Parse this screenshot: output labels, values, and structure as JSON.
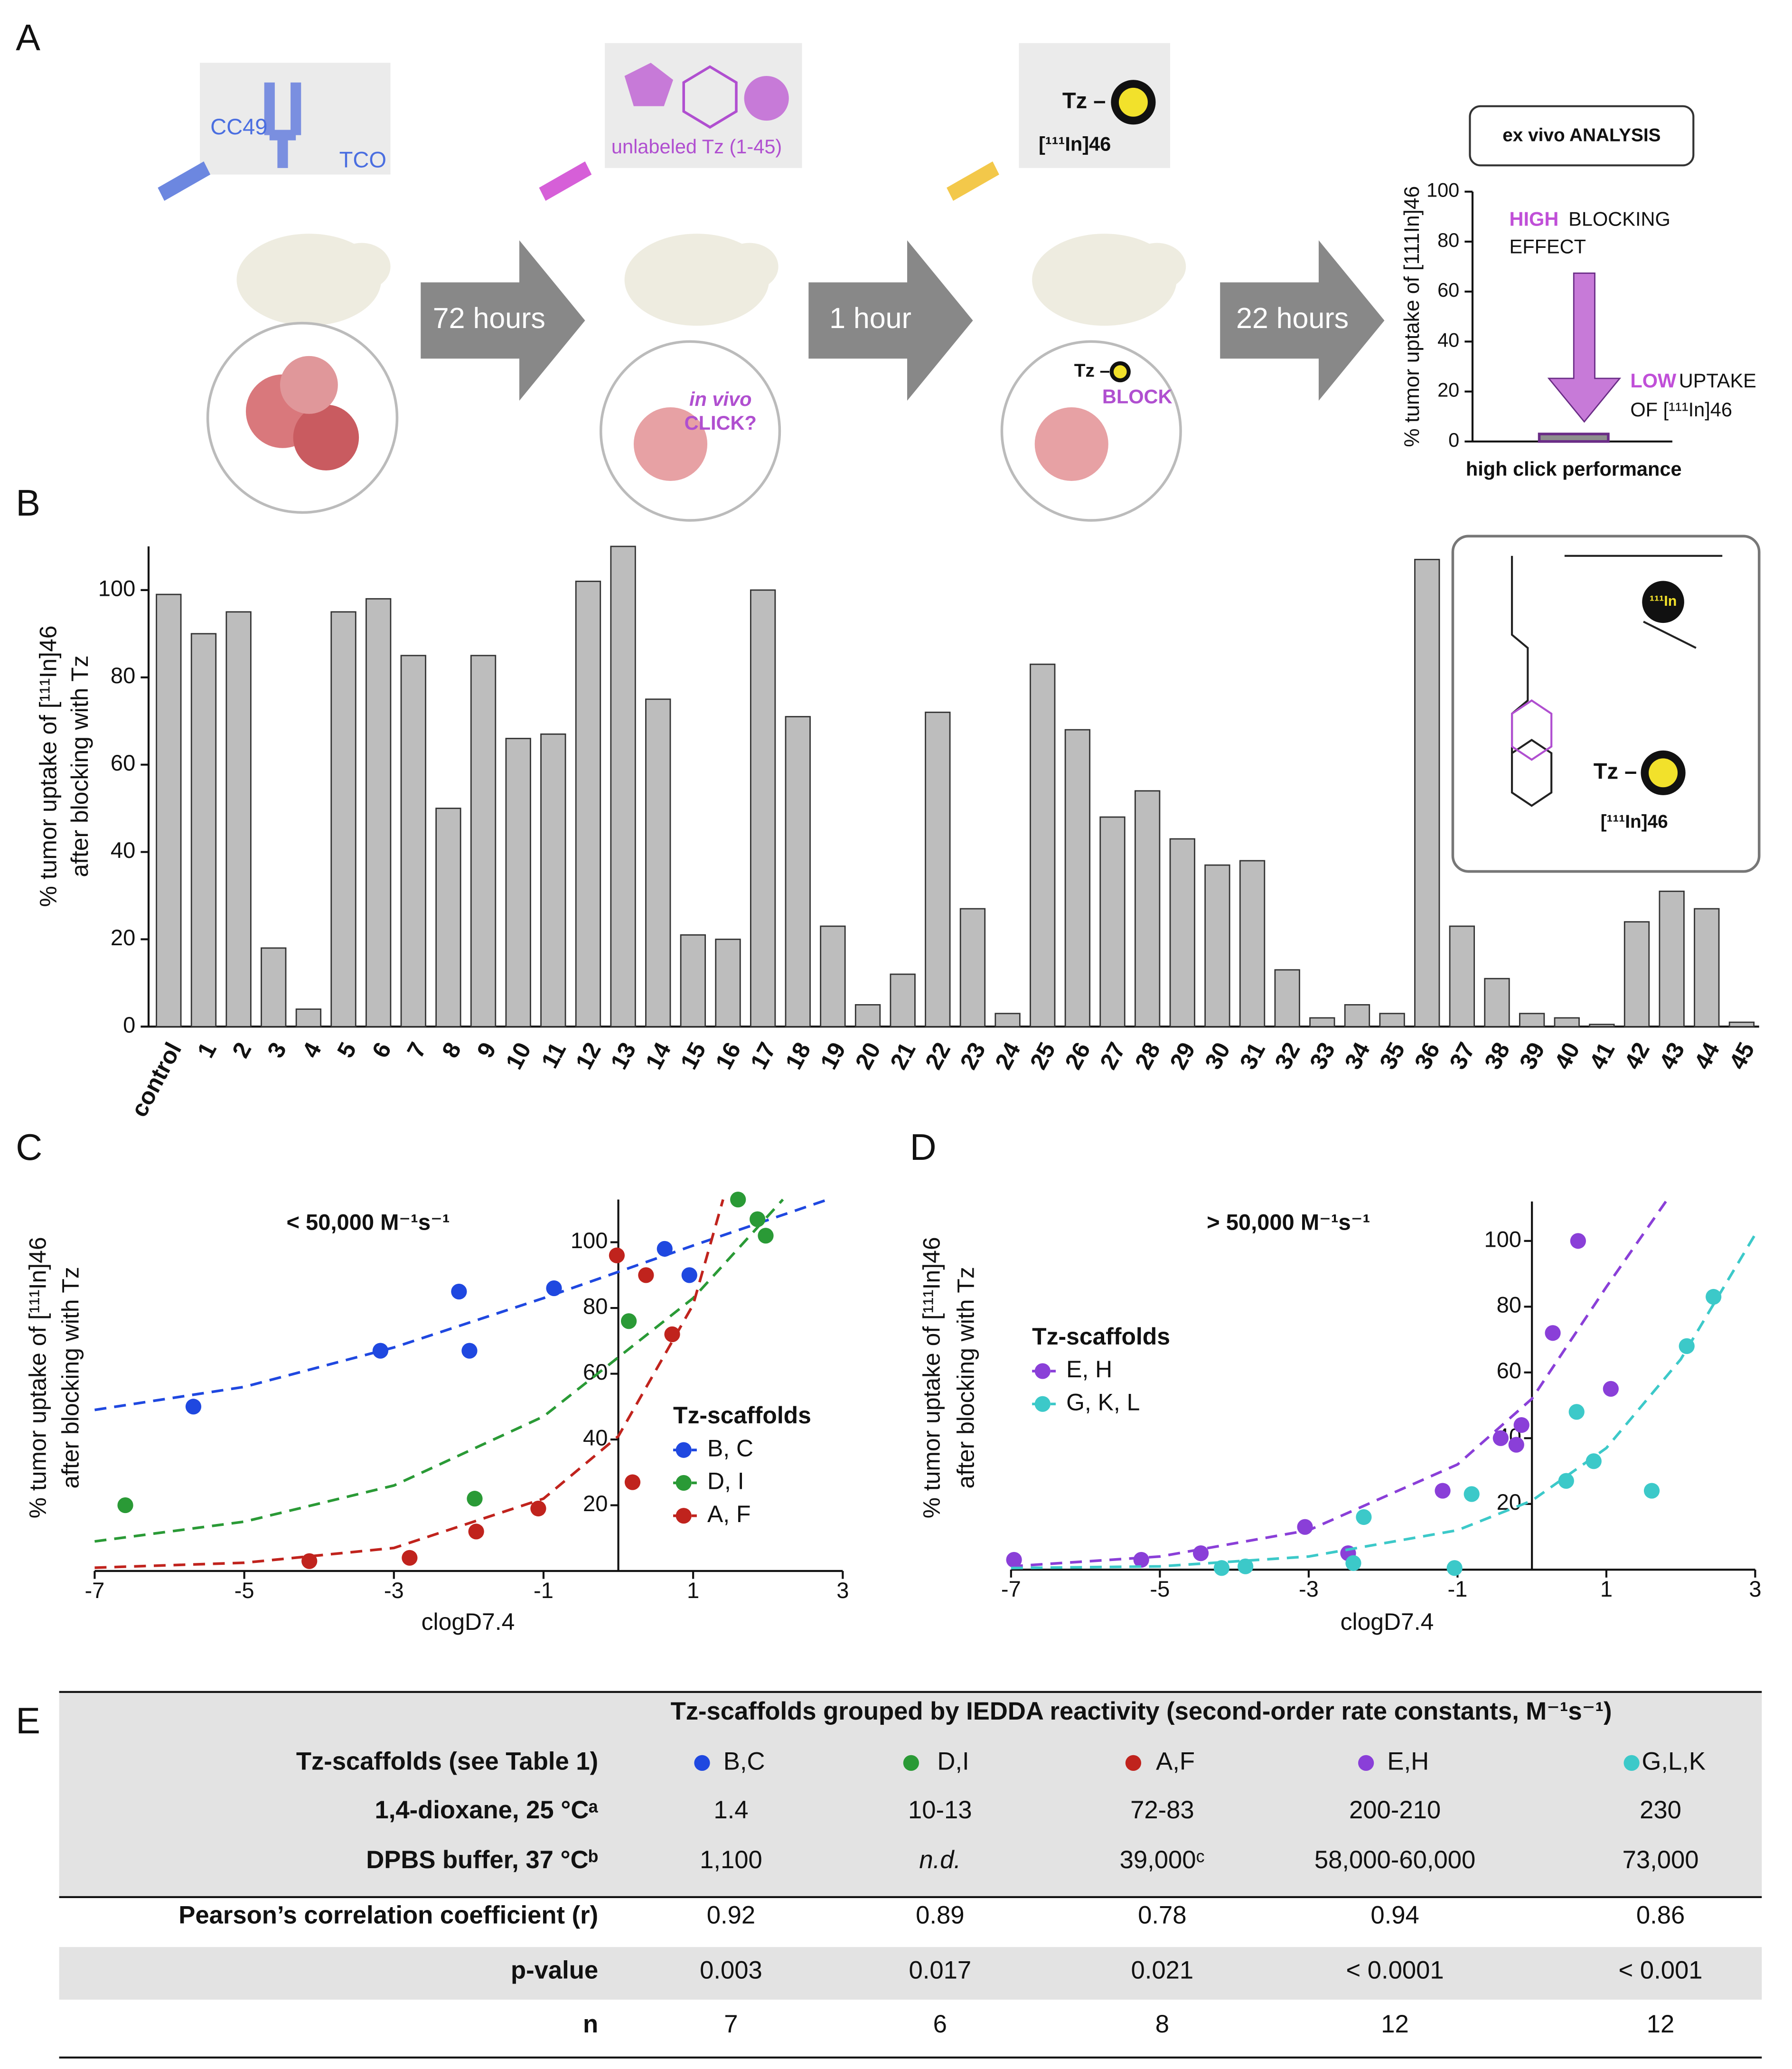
{
  "panel_labels": [
    "A",
    "B",
    "C",
    "D",
    "E"
  ],
  "schematic": {
    "antibody": "CC49",
    "tco": "TCO",
    "unlabeled_tz": "unlabeled Tz (1-45)",
    "tz_label": "Tz –",
    "probe": "[¹¹¹In]46",
    "steps": [
      "72 hours",
      "1 hour",
      "22 hours"
    ],
    "in_vivo": "in vivo",
    "click": "CLICK?",
    "tz_small": "Tz –",
    "block": "BLOCK",
    "analysis": "ex vivo ANALYSIS"
  },
  "structure": {
    "tz_label": "Tz –",
    "probe": "[¹¹¹In]46",
    "metal": "¹¹¹In"
  },
  "chart_data": [
    {
      "type": "bar",
      "categories": [
        "high click performance"
      ],
      "values": [
        3
      ],
      "color": "#8e8e8e",
      "edge_color": "#6a2c86",
      "ylim": [
        0,
        100
      ],
      "yticks": [
        0,
        20,
        40,
        60,
        80,
        100
      ],
      "ylabel": [
        "% tumor uptake of [111In]46"
      ],
      "annotations": [
        "HIGH",
        "BLOCKING",
        "EFFECT",
        "LOW",
        "UPTAKE",
        "OF [¹¹¹In]46"
      ],
      "annotation_color": "#c04fd8"
    },
    {
      "type": "bar",
      "categories": [
        "control",
        "1",
        "2",
        "3",
        "4",
        "5",
        "6",
        "7",
        "8",
        "9",
        "10",
        "11",
        "12",
        "13",
        "14",
        "15",
        "16",
        "17",
        "18",
        "19",
        "20",
        "21",
        "22",
        "23",
        "24",
        "25",
        "26",
        "27",
        "28",
        "29",
        "30",
        "31",
        "32",
        "33",
        "34",
        "35",
        "36",
        "37",
        "38",
        "39",
        "40",
        "41",
        "42",
        "43",
        "44",
        "45"
      ],
      "values": [
        99,
        90,
        95,
        18,
        4,
        95,
        98,
        85,
        50,
        85,
        66,
        67,
        102,
        110,
        75,
        21,
        20,
        100,
        71,
        23,
        5,
        12,
        72,
        27,
        3,
        83,
        68,
        48,
        54,
        43,
        37,
        38,
        13,
        2,
        5,
        3,
        107,
        23,
        11,
        3,
        2,
        0.5,
        24,
        31,
        27,
        1
      ],
      "color": "#bdbdbd",
      "ylim": [
        0,
        110
      ],
      "yticks": [
        0,
        20,
        40,
        60,
        80,
        100
      ],
      "ylabel": [
        "% tumor uptake of [¹¹¹In]46",
        "after blocking with Tz"
      ]
    },
    {
      "type": "scatter",
      "annotation": "< 50,000 M⁻¹s⁻¹",
      "xlabel": "clogD7.4",
      "ylabel": [
        "% tumor uptake of [¹¹¹In]46",
        "after blocking with Tz"
      ],
      "xlim": [
        -7,
        3
      ],
      "ylim": [
        0,
        113
      ],
      "xticks": [
        -7,
        -5,
        -3,
        -1,
        1,
        3
      ],
      "yticks": [
        20,
        40,
        60,
        80,
        100
      ],
      "legend_title": "Tz-scaffolds",
      "series": [
        {
          "name": "B, C",
          "color": "#1f48e0",
          "x": [
            -5.68,
            -2.13,
            -3.18,
            -1.99,
            -0.86,
            0.62,
            0.95
          ],
          "values": [
            50,
            85,
            67,
            67,
            86,
            98,
            90
          ],
          "fit_x": [
            -7,
            -5,
            -3,
            -1,
            1,
            2.8
          ],
          "fit_values": [
            49,
            56,
            68,
            83,
            99,
            113
          ]
        },
        {
          "name": "D, I",
          "color": "#2a9a36",
          "x": [
            -6.59,
            -1.92,
            0.14,
            1.6,
            1.86,
            1.97
          ],
          "values": [
            20,
            22,
            76,
            113,
            107,
            102
          ],
          "fit_x": [
            -7,
            -5,
            -3,
            -1,
            1,
            2.2
          ],
          "fit_values": [
            9,
            15,
            26,
            47,
            83,
            113
          ]
        },
        {
          "name": "A, F",
          "color": "#c0231d",
          "x": [
            -4.13,
            -2.79,
            -1.9,
            -1.07,
            -0.02,
            0.37,
            0.72,
            0.19
          ],
          "values": [
            3,
            4,
            12,
            19,
            96,
            90,
            72,
            27
          ],
          "fit_x": [
            -7,
            -5,
            -3,
            -1,
            0,
            1,
            1.4
          ],
          "fit_values": [
            1,
            2.5,
            7,
            22,
            41,
            81,
            113
          ]
        }
      ]
    },
    {
      "type": "scatter",
      "annotation": "> 50,000 M⁻¹s⁻¹",
      "xlabel": "clogD7.4",
      "ylabel": [
        "% tumor uptake of [¹¹¹In]46",
        "after blocking with Tz"
      ],
      "xlim": [
        -7,
        3
      ],
      "ylim": [
        0,
        112
      ],
      "xticks": [
        -7,
        -5,
        -3,
        -1,
        1,
        3
      ],
      "yticks": [
        20,
        40,
        60,
        80,
        100
      ],
      "legend_title": "Tz-scaffolds",
      "series": [
        {
          "name": "E, H",
          "color": "#8a3fd8",
          "x": [
            -6.96,
            -5.25,
            -4.45,
            -3.05,
            -2.47,
            -1.2,
            -0.42,
            -0.21,
            -0.14,
            0.28,
            0.62,
            1.06
          ],
          "values": [
            3,
            3,
            5,
            13,
            5,
            24,
            40,
            38,
            44,
            72,
            100,
            55
          ],
          "fit_x": [
            -7,
            -5,
            -3,
            -1,
            0,
            1,
            1.8
          ],
          "fit_values": [
            1,
            4,
            12,
            32,
            52,
            86,
            112
          ]
        },
        {
          "name": "G, K, L",
          "color": "#3cc9c9",
          "x": [
            -4.17,
            -3.85,
            -2.4,
            -2.26,
            -1.04,
            -0.81,
            0.46,
            0.6,
            0.83,
            1.61,
            2.08,
            2.44
          ],
          "values": [
            0.5,
            1,
            2,
            16,
            0.5,
            23,
            27,
            48,
            33,
            24,
            68,
            83
          ],
          "fit_x": [
            -7,
            -5,
            -3,
            -1,
            0,
            1,
            2,
            3
          ],
          "fit_values": [
            0.5,
            1,
            4,
            12,
            21,
            37,
            64,
            102
          ]
        }
      ]
    }
  ],
  "table": {
    "title": "Tz-scaffolds grouped by IEDDA reactivity (second-order rate constants, M⁻¹s⁻¹)",
    "colors": [
      "#1f48e0",
      "#2a9a36",
      "#c0231d",
      "#8a3fd8",
      "#3cc9c9"
    ],
    "rows": [
      [
        "Tz-scaffolds (see Table 1)",
        "B,C",
        "D,I",
        "A,F",
        "E,H",
        "G,L,K"
      ],
      [
        "1,4-dioxane, 25 °Cᵃ",
        "1.4",
        "10-13",
        "72-83",
        "200-210",
        "230"
      ],
      [
        "DPBS buffer, 37 °Cᵇ",
        "1,100",
        "n.d.",
        "39,000ᶜ",
        "58,000-60,000",
        "73,000"
      ],
      [
        "Pearson’s correlation coefficient (r)",
        "0.92",
        "0.89",
        "0.78",
        "0.94",
        "0.86"
      ],
      [
        "p-value",
        "0.003",
        "0.017",
        "0.021",
        "< 0.0001",
        "< 0.001"
      ],
      [
        "n",
        "7",
        "6",
        "8",
        "12",
        "12"
      ]
    ]
  }
}
